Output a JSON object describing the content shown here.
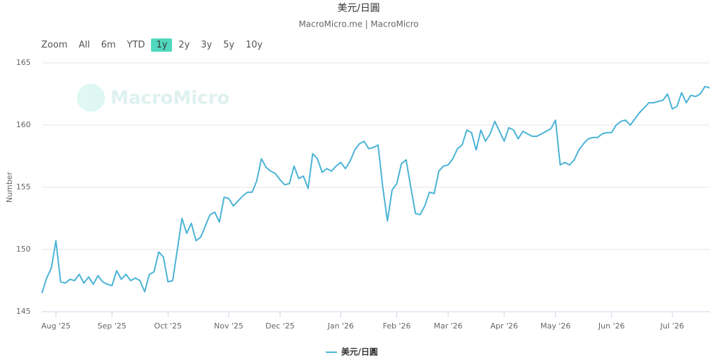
{
  "range_selector": {
    "label": "Zoom",
    "buttons": [
      "All",
      "6m",
      "YTD",
      "1y",
      "2y",
      "3y",
      "5y",
      "10y"
    ],
    "selected": "1y"
  },
  "watermark": "MacroMicro",
  "chart_data": {
    "type": "line",
    "title": "美元/日圓",
    "subtitle": "MacroMicro.me | MacroMicro",
    "y_axis_label": "Number",
    "categories": [
      null,
      null,
      null,
      "Aug '25",
      null,
      null,
      null,
      null,
      null,
      null,
      null,
      null,
      null,
      null,
      null,
      "Sep '25",
      null,
      null,
      null,
      null,
      null,
      null,
      null,
      null,
      null,
      null,
      null,
      "Oct '25",
      null,
      null,
      null,
      null,
      null,
      null,
      null,
      null,
      null,
      null,
      null,
      null,
      "Nov '25",
      null,
      null,
      null,
      null,
      null,
      null,
      null,
      null,
      null,
      null,
      "Dec '25",
      null,
      null,
      null,
      null,
      null,
      null,
      null,
      null,
      null,
      null,
      null,
      null,
      "Jan '26",
      null,
      null,
      null,
      null,
      null,
      null,
      null,
      null,
      null,
      null,
      null,
      "Feb '26",
      null,
      null,
      null,
      null,
      null,
      null,
      null,
      null,
      null,
      null,
      "Mar '26",
      null,
      null,
      null,
      null,
      null,
      null,
      null,
      null,
      null,
      null,
      null,
      "Apr '26",
      null,
      null,
      null,
      null,
      null,
      null,
      null,
      null,
      null,
      null,
      "May '26",
      null,
      null,
      null,
      null,
      null,
      null,
      null,
      null,
      null,
      null,
      null,
      "Jun '26",
      null,
      null,
      null,
      null,
      null,
      null,
      null,
      null,
      null,
      null,
      null,
      null,
      "Jul '26",
      null,
      null,
      null,
      null,
      null,
      null,
      null,
      null
    ],
    "series": [
      {
        "name": "美元/日圓",
        "color": "#4ab3d6",
        "values": [
          146.5,
          147.7,
          148.5,
          150.7,
          147.4,
          147.3,
          147.6,
          147.5,
          148.0,
          147.3,
          147.8,
          147.2,
          147.9,
          147.4,
          147.2,
          147.1,
          148.3,
          147.6,
          148.0,
          147.5,
          147.7,
          147.5,
          146.6,
          148.0,
          148.2,
          149.8,
          149.4,
          147.4,
          147.5,
          150.0,
          152.5,
          151.3,
          152.1,
          150.7,
          151.0,
          151.9,
          152.8,
          153.0,
          152.2,
          154.2,
          154.1,
          153.5,
          153.9,
          154.3,
          154.6,
          154.6,
          155.5,
          157.3,
          156.6,
          156.3,
          156.1,
          155.6,
          155.2,
          155.3,
          156.7,
          155.7,
          155.9,
          154.9,
          157.7,
          157.3,
          156.2,
          156.5,
          156.3,
          156.7,
          157.0,
          156.5,
          157.1,
          158.0,
          158.5,
          158.7,
          158.1,
          158.2,
          158.4,
          155.0,
          152.3,
          154.8,
          155.3,
          156.9,
          157.2,
          155.0,
          152.9,
          152.8,
          153.5,
          154.6,
          154.5,
          156.3,
          156.7,
          156.8,
          157.3,
          158.1,
          158.4,
          159.6,
          159.4,
          158.0,
          159.6,
          158.7,
          159.3,
          160.3,
          159.5,
          158.7,
          159.8,
          159.6,
          158.9,
          159.5,
          159.3,
          159.1,
          159.1,
          159.3,
          159.5,
          159.7,
          160.4,
          156.8,
          157.0,
          156.8,
          157.2,
          158.0,
          158.5,
          158.9,
          159.0,
          159.0,
          159.3,
          159.4,
          159.4,
          160.0,
          160.3,
          160.4,
          160.0,
          160.5,
          161.0,
          161.4,
          161.8,
          161.8,
          161.9,
          162.0,
          162.5,
          161.3,
          161.5,
          162.6,
          161.8,
          162.4,
          162.3,
          162.5,
          163.1,
          163.0
        ]
      }
    ],
    "ylim": [
      145,
      165
    ],
    "yticks": [
      145,
      150,
      155,
      160,
      165
    ],
    "grid": true,
    "legend": "bottom"
  }
}
